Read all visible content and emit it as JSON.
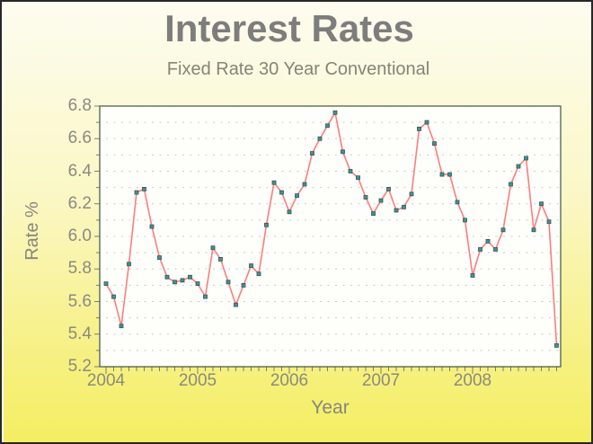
{
  "chart_data": {
    "type": "line",
    "title": "Interest Rates",
    "subtitle": "Fixed Rate 30 Year Conventional",
    "xlabel": "Year",
    "ylabel": "Rate %",
    "x_tick_labels": [
      "2004",
      "2005",
      "2006",
      "2007",
      "2008"
    ],
    "y_tick_labels": [
      "5.2",
      "5.4",
      "5.6",
      "5.8",
      "6.0",
      "6.2",
      "6.4",
      "6.6",
      "6.8"
    ],
    "ylim": [
      5.2,
      6.8
    ],
    "grid": "horizontal dashed lines every 0.1",
    "legend_position": "none",
    "x_unit": "month",
    "x_start": "2004-01",
    "x_end": "2008-12",
    "colors": {
      "line": "#f97f7f",
      "marker_fill": "#2e9c9c",
      "marker_stroke": "#4a4a4a",
      "background_top": "#fdfcf0",
      "background_bottom": "#f4ee62",
      "text": "#84847a",
      "plot_border": "#3e5547",
      "gridline": "#c9c9c9"
    },
    "series": [
      {
        "name": "30 Year Fixed Conventional Rate %",
        "cadence": "monthly, Jan 2004 through Dec 2008",
        "values": [
          5.71,
          5.63,
          5.45,
          5.83,
          6.27,
          6.29,
          6.06,
          5.87,
          5.75,
          5.72,
          5.73,
          5.75,
          5.71,
          5.63,
          5.93,
          5.86,
          5.72,
          5.58,
          5.7,
          5.82,
          5.77,
          6.07,
          6.33,
          6.27,
          6.15,
          6.25,
          6.32,
          6.51,
          6.6,
          6.68,
          6.76,
          6.52,
          6.4,
          6.36,
          6.24,
          6.14,
          6.22,
          6.29,
          6.16,
          6.18,
          6.26,
          6.66,
          6.7,
          6.57,
          6.38,
          6.38,
          6.21,
          6.1,
          5.76,
          5.92,
          5.97,
          5.92,
          6.04,
          6.32,
          6.43,
          6.48,
          6.04,
          6.2,
          6.09,
          5.33
        ]
      }
    ]
  }
}
